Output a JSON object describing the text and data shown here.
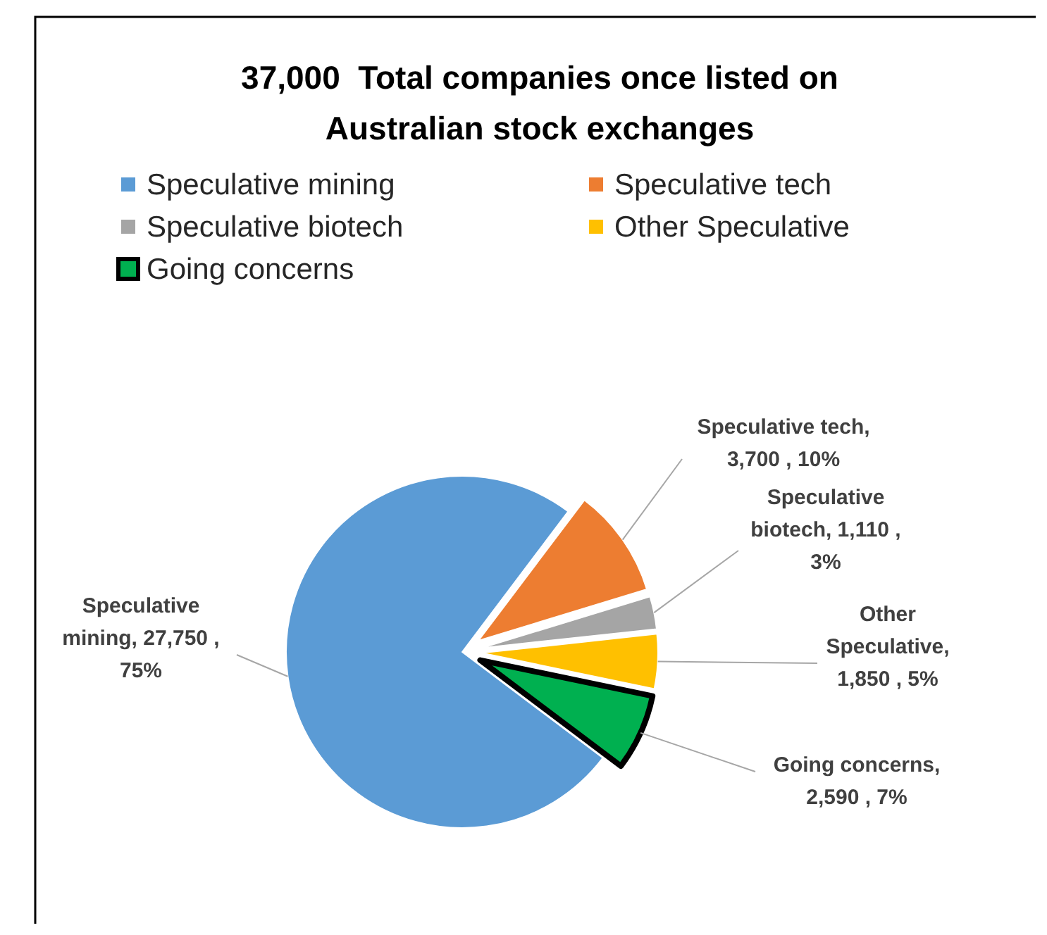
{
  "chart_data": {
    "type": "pie",
    "title": "37,000  Total companies once listed on Australian stock exchanges",
    "categories": [
      "Speculative mining",
      "Speculative tech",
      "Speculative biotech",
      "Other Speculative",
      "Going concerns"
    ],
    "values": [
      27750,
      3700,
      1110,
      1850,
      2590
    ],
    "colors": [
      "#5b9bd5",
      "#ed7d31",
      "#a5a5a5",
      "#ffc000",
      "#00b050"
    ],
    "value_labels": [
      "Speculative mining, 27,750 , 75%",
      "Speculative tech, 3,700 , 10%",
      "Speculative biotech, 1,110 , 3%",
      "Other Speculative, 1,850 , 5%",
      "Going concerns, 2,590 , 7%"
    ],
    "legend": "top"
  }
}
